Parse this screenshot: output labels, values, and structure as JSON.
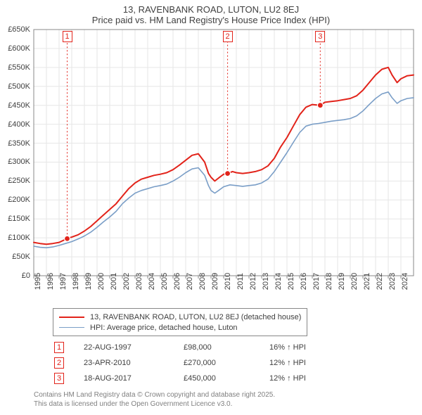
{
  "title": {
    "line1": "13, RAVENBANK ROAD, LUTON, LU2 8EJ",
    "line2": "Price paid vs. HM Land Registry's House Price Index (HPI)"
  },
  "chart": {
    "type": "line",
    "background_color": "#ffffff",
    "grid_color": "#e6e6e6",
    "axis_color": "#888888",
    "font_size_axis": 11,
    "x_years": [
      1995,
      1996,
      1997,
      1998,
      1999,
      2000,
      2001,
      2002,
      2003,
      2004,
      2005,
      2006,
      2007,
      2008,
      2009,
      2010,
      2011,
      2012,
      2013,
      2014,
      2015,
      2016,
      2017,
      2018,
      2019,
      2020,
      2021,
      2022,
      2023,
      2024
    ],
    "xlim": [
      1995,
      2025
    ],
    "ylim": [
      0,
      650000
    ],
    "ytick_step": 50000,
    "ytick_labels": [
      "£0",
      "£50K",
      "£100K",
      "£150K",
      "£200K",
      "£250K",
      "£300K",
      "£350K",
      "£400K",
      "£450K",
      "£500K",
      "£550K",
      "£600K",
      "£650K"
    ],
    "series": [
      {
        "name": "price_paid",
        "color": "#e2231a",
        "line_width": 2,
        "values": [
          [
            1995.0,
            88000
          ],
          [
            1995.5,
            85000
          ],
          [
            1996.0,
            83000
          ],
          [
            1996.5,
            85000
          ],
          [
            1997.0,
            88000
          ],
          [
            1997.64,
            98000
          ],
          [
            1998.0,
            102000
          ],
          [
            1998.5,
            108000
          ],
          [
            1999.0,
            118000
          ],
          [
            1999.5,
            130000
          ],
          [
            2000.0,
            145000
          ],
          [
            2000.5,
            160000
          ],
          [
            2001.0,
            175000
          ],
          [
            2001.5,
            190000
          ],
          [
            2002.0,
            210000
          ],
          [
            2002.5,
            230000
          ],
          [
            2003.0,
            245000
          ],
          [
            2003.5,
            255000
          ],
          [
            2004.0,
            260000
          ],
          [
            2004.5,
            265000
          ],
          [
            2005.0,
            268000
          ],
          [
            2005.5,
            272000
          ],
          [
            2006.0,
            280000
          ],
          [
            2006.5,
            292000
          ],
          [
            2007.0,
            305000
          ],
          [
            2007.5,
            318000
          ],
          [
            2008.0,
            322000
          ],
          [
            2008.5,
            300000
          ],
          [
            2008.8,
            270000
          ],
          [
            2009.0,
            260000
          ],
          [
            2009.3,
            250000
          ],
          [
            2009.6,
            258000
          ],
          [
            2010.0,
            268000
          ],
          [
            2010.31,
            270000
          ],
          [
            2010.7,
            275000
          ],
          [
            2011.0,
            272000
          ],
          [
            2011.5,
            270000
          ],
          [
            2012.0,
            272000
          ],
          [
            2012.5,
            275000
          ],
          [
            2013.0,
            280000
          ],
          [
            2013.5,
            290000
          ],
          [
            2014.0,
            310000
          ],
          [
            2014.5,
            340000
          ],
          [
            2015.0,
            365000
          ],
          [
            2015.5,
            395000
          ],
          [
            2016.0,
            425000
          ],
          [
            2016.5,
            445000
          ],
          [
            2017.0,
            452000
          ],
          [
            2017.63,
            450000
          ],
          [
            2018.0,
            458000
          ],
          [
            2018.5,
            460000
          ],
          [
            2019.0,
            462000
          ],
          [
            2019.5,
            465000
          ],
          [
            2020.0,
            468000
          ],
          [
            2020.5,
            475000
          ],
          [
            2021.0,
            490000
          ],
          [
            2021.5,
            510000
          ],
          [
            2022.0,
            530000
          ],
          [
            2022.5,
            545000
          ],
          [
            2023.0,
            550000
          ],
          [
            2023.3,
            530000
          ],
          [
            2023.7,
            510000
          ],
          [
            2024.0,
            520000
          ],
          [
            2024.5,
            528000
          ],
          [
            2025.0,
            530000
          ]
        ]
      },
      {
        "name": "hpi",
        "color": "#7a9ec7",
        "line_width": 1.6,
        "values": [
          [
            1995.0,
            78000
          ],
          [
            1995.5,
            75000
          ],
          [
            1996.0,
            74000
          ],
          [
            1996.5,
            76000
          ],
          [
            1997.0,
            80000
          ],
          [
            1997.5,
            85000
          ],
          [
            1998.0,
            90000
          ],
          [
            1998.5,
            97000
          ],
          [
            1999.0,
            105000
          ],
          [
            1999.5,
            115000
          ],
          [
            2000.0,
            128000
          ],
          [
            2000.5,
            142000
          ],
          [
            2001.0,
            155000
          ],
          [
            2001.5,
            170000
          ],
          [
            2002.0,
            190000
          ],
          [
            2002.5,
            205000
          ],
          [
            2003.0,
            218000
          ],
          [
            2003.5,
            225000
          ],
          [
            2004.0,
            230000
          ],
          [
            2004.5,
            235000
          ],
          [
            2005.0,
            238000
          ],
          [
            2005.5,
            242000
          ],
          [
            2006.0,
            250000
          ],
          [
            2006.5,
            260000
          ],
          [
            2007.0,
            272000
          ],
          [
            2007.5,
            282000
          ],
          [
            2008.0,
            285000
          ],
          [
            2008.5,
            265000
          ],
          [
            2008.8,
            238000
          ],
          [
            2009.0,
            225000
          ],
          [
            2009.3,
            218000
          ],
          [
            2009.6,
            225000
          ],
          [
            2010.0,
            235000
          ],
          [
            2010.5,
            240000
          ],
          [
            2011.0,
            238000
          ],
          [
            2011.5,
            236000
          ],
          [
            2012.0,
            238000
          ],
          [
            2012.5,
            240000
          ],
          [
            2013.0,
            245000
          ],
          [
            2013.5,
            255000
          ],
          [
            2014.0,
            275000
          ],
          [
            2014.5,
            300000
          ],
          [
            2015.0,
            325000
          ],
          [
            2015.5,
            352000
          ],
          [
            2016.0,
            378000
          ],
          [
            2016.5,
            395000
          ],
          [
            2017.0,
            400000
          ],
          [
            2017.5,
            402000
          ],
          [
            2018.0,
            405000
          ],
          [
            2018.5,
            408000
          ],
          [
            2019.0,
            410000
          ],
          [
            2019.5,
            412000
          ],
          [
            2020.0,
            415000
          ],
          [
            2020.5,
            422000
          ],
          [
            2021.0,
            435000
          ],
          [
            2021.5,
            452000
          ],
          [
            2022.0,
            468000
          ],
          [
            2022.5,
            480000
          ],
          [
            2023.0,
            485000
          ],
          [
            2023.3,
            470000
          ],
          [
            2023.7,
            455000
          ],
          [
            2024.0,
            462000
          ],
          [
            2024.5,
            468000
          ],
          [
            2025.0,
            470000
          ]
        ]
      }
    ],
    "event_markers": [
      {
        "n": "1",
        "x": 1997.64,
        "y": 98000,
        "box_color": "#e2231a"
      },
      {
        "n": "2",
        "x": 2010.31,
        "y": 270000,
        "box_color": "#e2231a"
      },
      {
        "n": "3",
        "x": 2017.63,
        "y": 450000,
        "box_color": "#e2231a"
      }
    ]
  },
  "legend": {
    "items": [
      {
        "color": "#e2231a",
        "label": "13, RAVENBANK ROAD, LUTON, LU2 8EJ (detached house)",
        "width": 2
      },
      {
        "color": "#7a9ec7",
        "label": "HPI: Average price, detached house, Luton",
        "width": 1.6
      }
    ]
  },
  "events": [
    {
      "n": "1",
      "date": "22-AUG-1997",
      "price": "£98,000",
      "pct": "16% ↑ HPI",
      "box_color": "#e2231a"
    },
    {
      "n": "2",
      "date": "23-APR-2010",
      "price": "£270,000",
      "pct": "12% ↑ HPI",
      "box_color": "#e2231a"
    },
    {
      "n": "3",
      "date": "18-AUG-2017",
      "price": "£450,000",
      "pct": "12% ↑ HPI",
      "box_color": "#e2231a"
    }
  ],
  "footer": {
    "line1": "Contains HM Land Registry data © Crown copyright and database right 2025.",
    "line2": "This data is licensed under the Open Government Licence v3.0."
  }
}
